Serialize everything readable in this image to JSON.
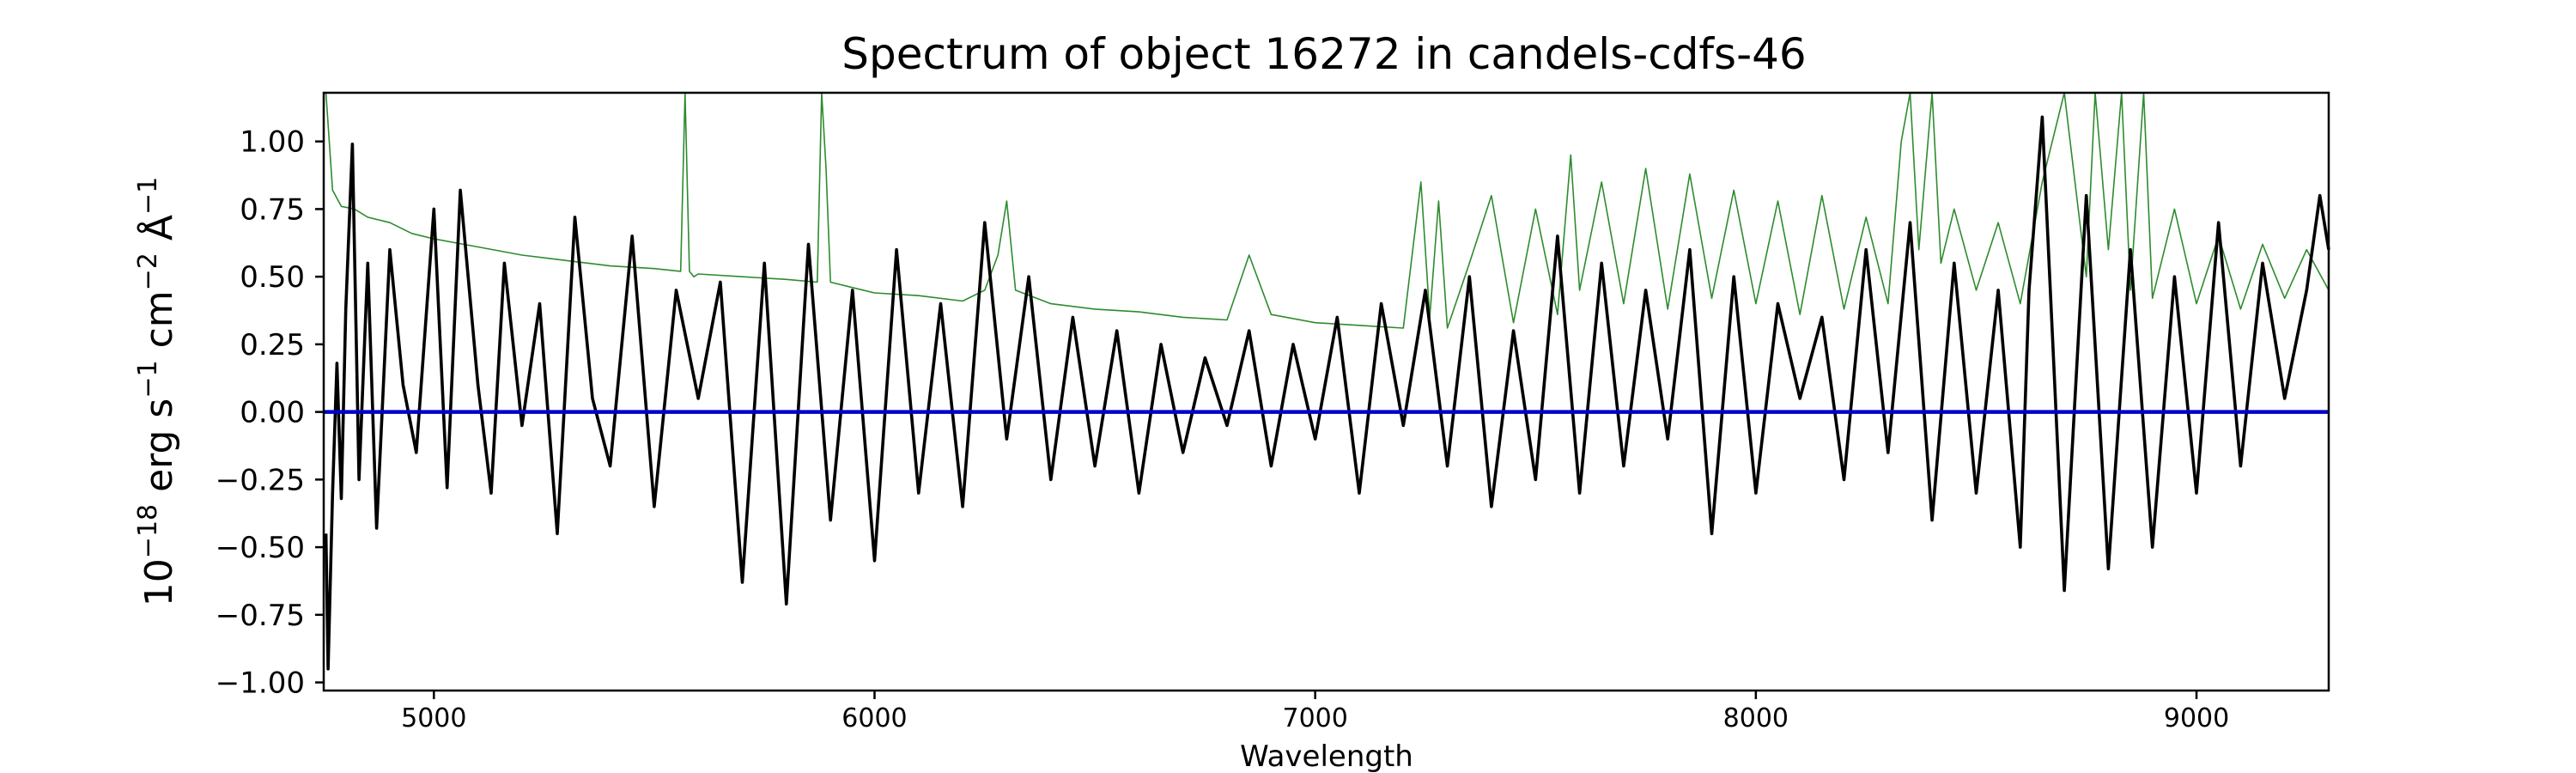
{
  "chart_data": {
    "type": "line",
    "title": "Spectrum of object 16272 in candels-cdfs-46",
    "xlabel": "Wavelength",
    "ylabel": {
      "base": "10",
      "exp": "−18",
      "unit_1": " erg s",
      "unit_1_exp": "−1",
      "unit_2": " cm",
      "unit_2_exp": "−2",
      "unit_3": " Å",
      "unit_3_exp": "−1"
    },
    "xlim": [
      4750,
      9300
    ],
    "ylim": [
      -1.03,
      1.18
    ],
    "x_ticks": [
      5000,
      6000,
      7000,
      8000,
      9000
    ],
    "x_tick_labels": [
      "5000",
      "6000",
      "7000",
      "8000",
      "9000"
    ],
    "y_ticks": [
      -1.0,
      -0.75,
      -0.5,
      -0.25,
      0.0,
      0.25,
      0.5,
      0.75,
      1.0
    ],
    "y_tick_labels": [
      "−1.00",
      "−0.75",
      "−0.50",
      "−0.25",
      "0.00",
      "0.25",
      "0.50",
      "0.75",
      "1.00"
    ],
    "grid": false,
    "series": [
      {
        "role": "error",
        "color": "#2e8b2e",
        "x": [
          4755,
          4770,
          4790,
          4820,
          4850,
          4900,
          4950,
          5000,
          5100,
          5200,
          5300,
          5400,
          5500,
          5560,
          5570,
          5580,
          5590,
          5600,
          5700,
          5800,
          5870,
          5880,
          5890,
          5900,
          5950,
          6000,
          6100,
          6200,
          6250,
          6280,
          6300,
          6320,
          6400,
          6500,
          6600,
          6700,
          6800,
          6850,
          6900,
          7000,
          7100,
          7200,
          7240,
          7260,
          7280,
          7300,
          7350,
          7400,
          7450,
          7500,
          7550,
          7580,
          7600,
          7650,
          7700,
          7750,
          7800,
          7850,
          7900,
          7950,
          8000,
          8050,
          8100,
          8150,
          8200,
          8250,
          8300,
          8330,
          8350,
          8370,
          8400,
          8420,
          8450,
          8500,
          8550,
          8600,
          8650,
          8700,
          8750,
          8770,
          8800,
          8830,
          8850,
          8880,
          8900,
          8950,
          9000,
          9050,
          9100,
          9150,
          9200,
          9250,
          9300
        ],
        "y": [
          1.18,
          0.82,
          0.76,
          0.75,
          0.72,
          0.7,
          0.66,
          0.64,
          0.61,
          0.58,
          0.56,
          0.54,
          0.53,
          0.52,
          1.18,
          0.52,
          0.5,
          0.51,
          0.5,
          0.49,
          0.48,
          1.18,
          0.9,
          0.48,
          0.46,
          0.44,
          0.43,
          0.41,
          0.45,
          0.58,
          0.78,
          0.45,
          0.4,
          0.38,
          0.37,
          0.35,
          0.34,
          0.58,
          0.36,
          0.33,
          0.32,
          0.31,
          0.85,
          0.35,
          0.78,
          0.31,
          0.55,
          0.8,
          0.33,
          0.75,
          0.36,
          0.95,
          0.45,
          0.85,
          0.4,
          0.9,
          0.38,
          0.88,
          0.42,
          0.82,
          0.4,
          0.78,
          0.36,
          0.8,
          0.38,
          0.72,
          0.4,
          1.0,
          1.18,
          0.6,
          1.18,
          0.55,
          0.75,
          0.45,
          0.7,
          0.4,
          0.85,
          1.18,
          0.5,
          1.18,
          0.6,
          1.18,
          0.45,
          1.18,
          0.42,
          0.75,
          0.4,
          0.65,
          0.38,
          0.62,
          0.42,
          0.6,
          0.45
        ]
      },
      {
        "role": "flux",
        "color": "#000000",
        "x": [
          4755,
          4760,
          4770,
          4780,
          4790,
          4800,
          4815,
          4830,
          4850,
          4870,
          4900,
          4930,
          4960,
          5000,
          5030,
          5060,
          5100,
          5130,
          5160,
          5200,
          5240,
          5280,
          5320,
          5360,
          5400,
          5450,
          5500,
          5550,
          5600,
          5650,
          5700,
          5750,
          5800,
          5850,
          5900,
          5950,
          6000,
          6050,
          6100,
          6150,
          6200,
          6250,
          6300,
          6350,
          6400,
          6450,
          6500,
          6550,
          6600,
          6650,
          6700,
          6750,
          6800,
          6850,
          6900,
          6950,
          7000,
          7050,
          7100,
          7150,
          7200,
          7250,
          7300,
          7350,
          7400,
          7450,
          7500,
          7550,
          7600,
          7650,
          7700,
          7750,
          7800,
          7850,
          7900,
          7950,
          8000,
          8050,
          8100,
          8150,
          8200,
          8250,
          8300,
          8350,
          8400,
          8450,
          8500,
          8550,
          8600,
          8620,
          8650,
          8700,
          8750,
          8800,
          8850,
          8900,
          8950,
          9000,
          9050,
          9100,
          9150,
          9200,
          9250,
          9280,
          9300
        ],
        "y": [
          -0.45,
          -0.95,
          -0.3,
          0.18,
          -0.32,
          0.38,
          0.99,
          -0.25,
          0.55,
          -0.43,
          0.6,
          0.1,
          -0.15,
          0.75,
          -0.28,
          0.82,
          0.1,
          -0.3,
          0.55,
          -0.05,
          0.4,
          -0.45,
          0.72,
          0.05,
          -0.2,
          0.65,
          -0.35,
          0.45,
          0.05,
          0.48,
          -0.63,
          0.55,
          -0.71,
          0.62,
          -0.4,
          0.45,
          -0.55,
          0.6,
          -0.3,
          0.4,
          -0.35,
          0.7,
          -0.1,
          0.5,
          -0.25,
          0.35,
          -0.2,
          0.3,
          -0.3,
          0.25,
          -0.15,
          0.2,
          -0.05,
          0.3,
          -0.2,
          0.25,
          -0.1,
          0.35,
          -0.3,
          0.4,
          -0.05,
          0.45,
          -0.2,
          0.5,
          -0.35,
          0.3,
          -0.25,
          0.65,
          -0.3,
          0.55,
          -0.2,
          0.45,
          -0.1,
          0.6,
          -0.45,
          0.5,
          -0.3,
          0.4,
          0.05,
          0.35,
          -0.25,
          0.6,
          -0.15,
          0.7,
          -0.4,
          0.55,
          -0.3,
          0.45,
          -0.5,
          0.45,
          1.09,
          -0.66,
          0.8,
          -0.58,
          0.6,
          -0.5,
          0.5,
          -0.3,
          0.7,
          -0.2,
          0.55,
          0.05,
          0.45,
          0.8,
          0.6
        ]
      },
      {
        "role": "zero",
        "color": "#0000cc",
        "x": [
          4750,
          9300
        ],
        "y": [
          0,
          0
        ]
      }
    ]
  }
}
